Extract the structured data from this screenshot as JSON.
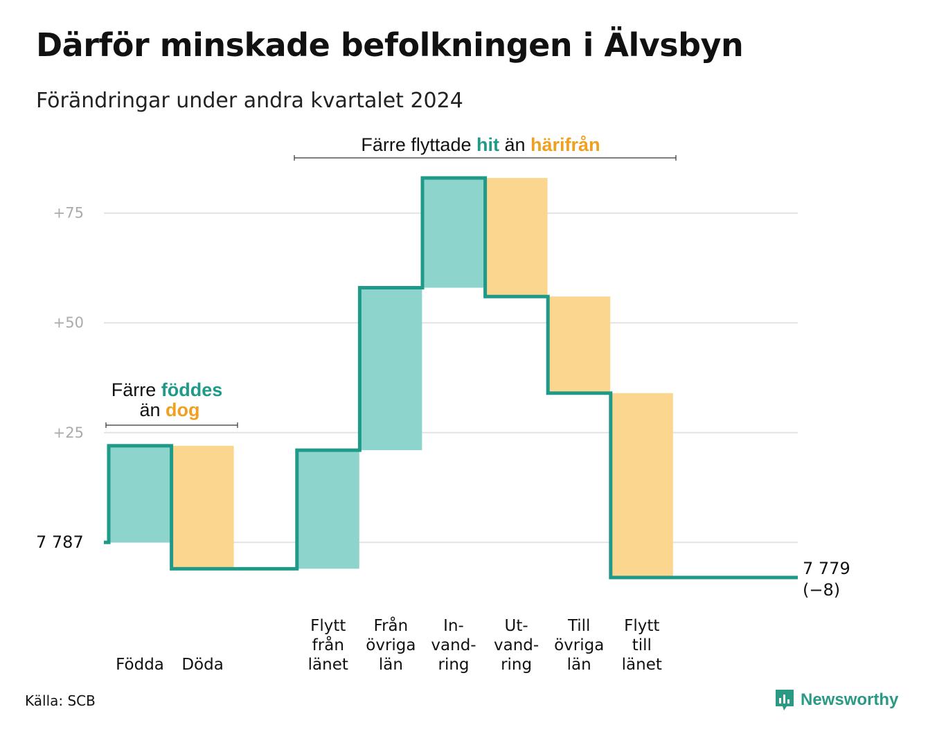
{
  "title": "Därför minskade befolkningen i Älvsbyn",
  "subtitle": "Förändringar under andra kvartalet 2024",
  "source": "Källa: SCB",
  "brand": "Newsworthy",
  "colors": {
    "increase_fill": "#8dd5cc",
    "decrease_fill": "#fad68e",
    "line": "#1f9a88",
    "grid": "#e3e3e3",
    "accent_teal": "#1f9a88",
    "accent_orange": "#f0a020"
  },
  "chart_data": {
    "type": "waterfall",
    "start_value": 7787,
    "start_label": "7 787",
    "end_value": 7779,
    "end_label": "7 779",
    "end_change_label": "(−8)",
    "ylim": [
      -8,
      83
    ],
    "yticks": [
      {
        "value": 25,
        "label": "+25"
      },
      {
        "value": 50,
        "label": "+50"
      },
      {
        "value": 75,
        "label": "+75"
      }
    ],
    "steps": [
      {
        "label_lines": [
          "Födda"
        ],
        "change": 22,
        "kind": "increase"
      },
      {
        "label_lines": [
          "Döda"
        ],
        "change": -28,
        "kind": "decrease"
      },
      {
        "label_lines": [],
        "change": 0,
        "kind": "gap"
      },
      {
        "label_lines": [
          "Flytt",
          "från",
          "länet"
        ],
        "change": 27,
        "kind": "increase"
      },
      {
        "label_lines": [
          "Från",
          "övriga",
          "län"
        ],
        "change": 37,
        "kind": "increase"
      },
      {
        "label_lines": [
          "In-",
          "vand-",
          "ring"
        ],
        "change": 25,
        "kind": "increase"
      },
      {
        "label_lines": [
          "Ut-",
          "vand-",
          "ring"
        ],
        "change": -27,
        "kind": "decrease"
      },
      {
        "label_lines": [
          "Till",
          "övriga",
          "län"
        ],
        "change": -22,
        "kind": "decrease"
      },
      {
        "label_lines": [
          "Flytt",
          "till",
          "länet"
        ],
        "change": -42,
        "kind": "decrease"
      }
    ],
    "annotations": [
      {
        "parts": [
          "Färre ",
          "föddes"
        ],
        "parts2": [
          "än ",
          "dog"
        ]
      },
      {
        "parts": [
          "Färre flyttade ",
          "hit",
          " än ",
          "härifrån"
        ]
      }
    ]
  }
}
